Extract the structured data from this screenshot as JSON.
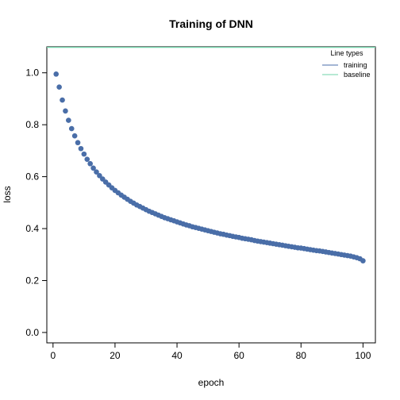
{
  "chart_data": {
    "type": "scatter",
    "title": "Training of DNN",
    "xlabel": "epoch",
    "ylabel": "loss",
    "xlim": [
      -2,
      104
    ],
    "ylim": [
      -0.04,
      1.1
    ],
    "xticks": [
      0,
      20,
      40,
      60,
      80,
      100
    ],
    "yticks": [
      0.0,
      0.2,
      0.4,
      0.6,
      0.8,
      1.0
    ],
    "ytick_labels": [
      "0.0",
      "0.2",
      "0.4",
      "0.6",
      "0.8",
      "1.0"
    ],
    "grid": false,
    "legend": {
      "title": "Line types",
      "position": "top-right",
      "entries": [
        {
          "label": "training",
          "color": "#4a6ea8"
        },
        {
          "label": "baseline",
          "color": "#6fd3a8"
        }
      ]
    },
    "series": [
      {
        "name": "training",
        "kind": "points",
        "color": "#4a6ea8",
        "x": [
          1,
          2,
          3,
          4,
          5,
          6,
          7,
          8,
          9,
          10,
          11,
          12,
          13,
          14,
          15,
          16,
          17,
          18,
          19,
          20,
          21,
          22,
          23,
          24,
          25,
          26,
          27,
          28,
          29,
          30,
          31,
          32,
          33,
          34,
          35,
          36,
          37,
          38,
          39,
          40,
          41,
          42,
          43,
          44,
          45,
          46,
          47,
          48,
          49,
          50,
          51,
          52,
          53,
          54,
          55,
          56,
          57,
          58,
          59,
          60,
          61,
          62,
          63,
          64,
          65,
          66,
          67,
          68,
          69,
          70,
          71,
          72,
          73,
          74,
          75,
          76,
          77,
          78,
          79,
          80,
          81,
          82,
          83,
          84,
          85,
          86,
          87,
          88,
          89,
          90,
          91,
          92,
          93,
          94,
          95,
          96,
          97,
          98,
          99,
          100
        ],
        "y": [
          0.995,
          0.945,
          0.895,
          0.853,
          0.817,
          0.785,
          0.757,
          0.731,
          0.708,
          0.687,
          0.667,
          0.65,
          0.633,
          0.618,
          0.604,
          0.591,
          0.579,
          0.568,
          0.557,
          0.547,
          0.538,
          0.529,
          0.521,
          0.513,
          0.505,
          0.498,
          0.491,
          0.485,
          0.479,
          0.473,
          0.467,
          0.462,
          0.457,
          0.452,
          0.447,
          0.442,
          0.438,
          0.434,
          0.43,
          0.426,
          0.422,
          0.418,
          0.414,
          0.411,
          0.407,
          0.404,
          0.401,
          0.398,
          0.395,
          0.392,
          0.389,
          0.386,
          0.383,
          0.38,
          0.378,
          0.375,
          0.373,
          0.37,
          0.368,
          0.366,
          0.363,
          0.361,
          0.359,
          0.357,
          0.354,
          0.352,
          0.35,
          0.348,
          0.346,
          0.344,
          0.342,
          0.34,
          0.338,
          0.336,
          0.334,
          0.332,
          0.33,
          0.328,
          0.326,
          0.325,
          0.323,
          0.321,
          0.319,
          0.317,
          0.315,
          0.314,
          0.312,
          0.31,
          0.308,
          0.306,
          0.304,
          0.302,
          0.3,
          0.298,
          0.296,
          0.294,
          0.291,
          0.288,
          0.284,
          0.276
        ]
      },
      {
        "name": "baseline",
        "kind": "hline",
        "color": "#6fd3a8",
        "y": 1.098
      }
    ]
  }
}
